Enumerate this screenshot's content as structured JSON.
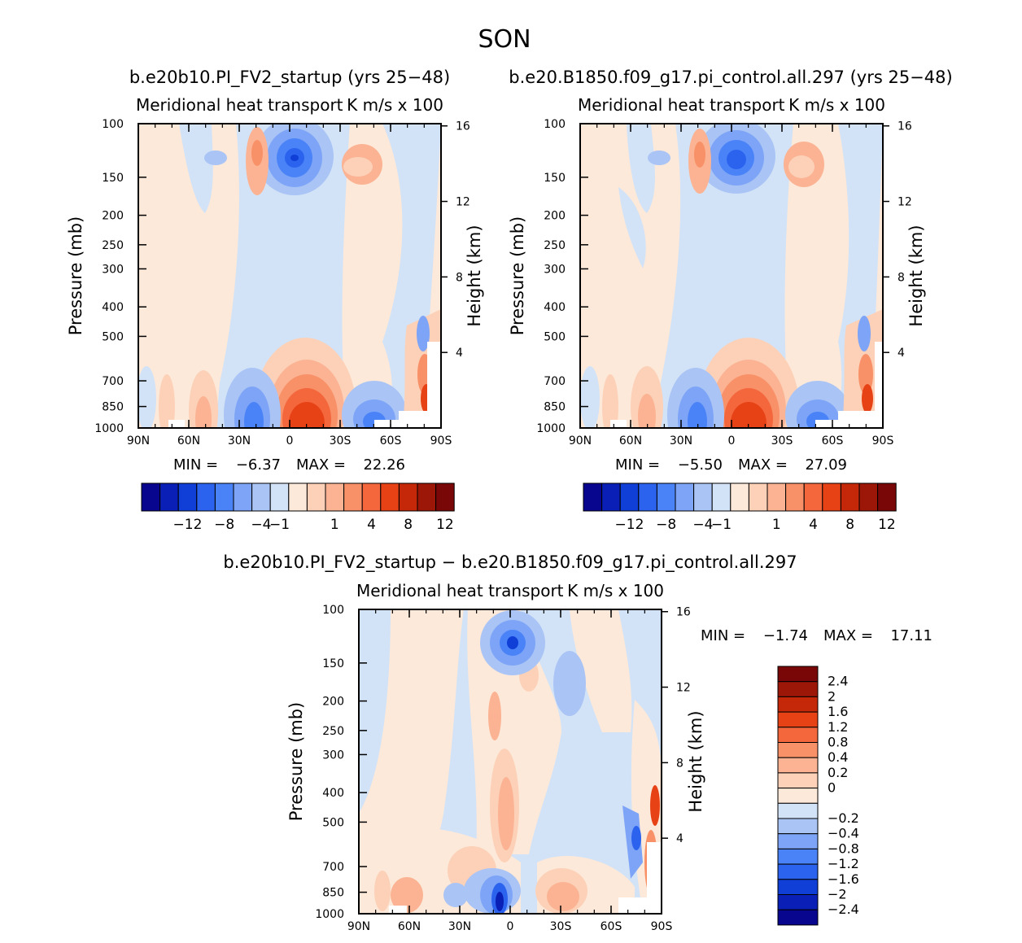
{
  "page": {
    "title": "SON"
  },
  "colors": {
    "neg": [
      "#08068f",
      "#0a1fb5",
      "#0f3fd6",
      "#2b63ee",
      "#4a82f7",
      "#7da4f6",
      "#a9c4f5",
      "#d2e3f7"
    ],
    "pos": [
      "#fde9d9",
      "#fcd1b8",
      "#fbb393",
      "#f89168",
      "#f4673d",
      "#e74216",
      "#c52808",
      "#9c1708",
      "#7a0707"
    ]
  },
  "chart_data": [
    {
      "type": "heatmap",
      "panel": "top-left",
      "case_title": "b.e20b10.PI_FV2_startup (yrs 25−48)",
      "title": "Meridional heat transport",
      "title_units": "K m/s x 100",
      "xlabel": "",
      "ylabel": "Pressure (mb)",
      "ylabel_right": "Height (km)",
      "x_ticklabels": [
        "90N",
        "60N",
        "30N",
        "0",
        "30S",
        "60S",
        "90S"
      ],
      "y_ticklabels": [
        "100",
        "150",
        "200",
        "250",
        "300",
        "400",
        "500",
        "700",
        "850",
        "1000"
      ],
      "height_ticklabels": [
        "16",
        "12",
        "8",
        "4"
      ],
      "xlim": [
        90,
        -90
      ],
      "ylim": [
        1000,
        100
      ],
      "y_scale": "log",
      "min_label": "MIN =",
      "min_value": "−6.37",
      "max_label": "MAX =",
      "max_value": "22.26",
      "colorbar_labels": [
        "−12",
        "−8",
        "−4",
        "−1",
        "1",
        "4",
        "8",
        "12"
      ],
      "colorbar_orientation": "horizontal",
      "features": [
        {
          "lat": 0,
          "p": 200,
          "value": -6.37
        },
        {
          "lat": 0,
          "p": 950,
          "value": 22.26
        },
        {
          "lat": 15,
          "p": 220,
          "value": 3
        },
        {
          "lat": -15,
          "p": 210,
          "value": 3
        },
        {
          "lat": 35,
          "p": 940,
          "value": -5
        },
        {
          "lat": -42,
          "p": 960,
          "value": -5
        },
        {
          "lat": 65,
          "p": 950,
          "value": 3
        },
        {
          "lat": -82,
          "p": 880,
          "value": 6
        }
      ]
    },
    {
      "type": "heatmap",
      "panel": "top-right",
      "case_title": "b.e20.B1850.f09_g17.pi_control.all.297 (yrs 25−48)",
      "title": "Meridional heat transport",
      "title_units": "K m/s x 100",
      "xlabel": "",
      "ylabel": "Pressure (mb)",
      "ylabel_right": "Height (km)",
      "x_ticklabels": [
        "90N",
        "60N",
        "30N",
        "0",
        "30S",
        "60S",
        "90S"
      ],
      "y_ticklabels": [
        "100",
        "150",
        "200",
        "250",
        "300",
        "400",
        "500",
        "700",
        "850",
        "1000"
      ],
      "height_ticklabels": [
        "16",
        "12",
        "8",
        "4"
      ],
      "xlim": [
        90,
        -90
      ],
      "ylim": [
        1000,
        100
      ],
      "y_scale": "log",
      "min_label": "MIN =",
      "min_value": "−5.50",
      "max_label": "MAX =",
      "max_value": "27.09",
      "colorbar_labels": [
        "−12",
        "−8",
        "−4",
        "−1",
        "1",
        "4",
        "8",
        "12"
      ],
      "colorbar_orientation": "horizontal",
      "features": [
        {
          "lat": 0,
          "p": 200,
          "value": -5.5
        },
        {
          "lat": 0,
          "p": 950,
          "value": 27.09
        },
        {
          "lat": 20,
          "p": 210,
          "value": 3
        },
        {
          "lat": -15,
          "p": 210,
          "value": 3
        },
        {
          "lat": 35,
          "p": 940,
          "value": -5
        },
        {
          "lat": -42,
          "p": 960,
          "value": -5
        },
        {
          "lat": 60,
          "p": 950,
          "value": 3
        },
        {
          "lat": -82,
          "p": 880,
          "value": 6
        }
      ]
    },
    {
      "type": "heatmap",
      "panel": "bottom",
      "case_title": "b.e20b10.PI_FV2_startup − b.e20.B1850.f09_g17.pi_control.all.297",
      "title": "Meridional heat transport",
      "title_units": "K m/s x 100",
      "xlabel": "",
      "ylabel": "Pressure (mb)",
      "ylabel_right": "Height (km)",
      "x_ticklabels": [
        "90N",
        "60N",
        "30N",
        "0",
        "30S",
        "60S",
        "90S"
      ],
      "y_ticklabels": [
        "100",
        "150",
        "200",
        "250",
        "300",
        "400",
        "500",
        "700",
        "850",
        "1000"
      ],
      "height_ticklabels": [
        "16",
        "12",
        "8",
        "4"
      ],
      "xlim": [
        90,
        -90
      ],
      "ylim": [
        1000,
        100
      ],
      "y_scale": "log",
      "min_label": "MIN =",
      "min_value": "−1.74",
      "max_label": "MAX =",
      "max_value": "17.11",
      "colorbar_labels": [
        "2.4",
        "2",
        "1.6",
        "1.2",
        "0.8",
        "0.4",
        "0.2",
        "0",
        "−0.2",
        "−0.4",
        "−0.8",
        "−1.2",
        "−1.6",
        "−2",
        "−2.4"
      ],
      "colorbar_orientation": "vertical",
      "features": [
        {
          "lat": 0,
          "p": 200,
          "value": -1.74
        },
        {
          "lat": 8,
          "p": 950,
          "value": -1.5
        },
        {
          "lat": 0,
          "p": 650,
          "value": 0.8
        },
        {
          "lat": -80,
          "p": 700,
          "value": 2.4
        }
      ]
    }
  ]
}
